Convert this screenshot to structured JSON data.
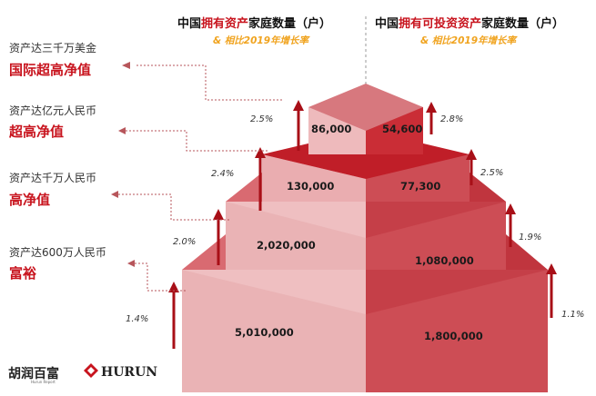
{
  "header": {
    "left": {
      "prefix": "中国",
      "highlight": "拥有资产",
      "suffix": "家庭数量（户）"
    },
    "right": {
      "prefix": "中国",
      "highlight": "拥有可投资资产",
      "suffix": "家庭数量（户）"
    },
    "subtitle": "& 相比2019年增长率"
  },
  "tiers": [
    {
      "criterion": "资产达三千万美金",
      "label": "国际超高净值"
    },
    {
      "criterion": "资产达亿元人民币",
      "label": "超高净值"
    },
    {
      "criterion": "资产达千万人民币",
      "label": "高净值"
    },
    {
      "criterion": "资产达600万人民币",
      "label": "富裕"
    }
  ],
  "chart_data": {
    "type": "table",
    "columns": [
      "拥有资产家庭数量（户）",
      "拥有可投资资产家庭数量（户）"
    ],
    "rows": [
      {
        "tier": "国际超高净值",
        "assets": "86,000",
        "assets_growth": "2.5%",
        "investable": "54,600",
        "investable_growth": "2.8%"
      },
      {
        "tier": "超高净值",
        "assets": "130,000",
        "assets_growth": "2.4%",
        "investable": "77,300",
        "investable_growth": "2.5%"
      },
      {
        "tier": "高净值",
        "assets": "2,020,000",
        "assets_growth": "2.0%",
        "investable": "1,080,000",
        "investable_growth": "1.9%"
      },
      {
        "tier": "富裕",
        "assets": "5,010,000",
        "assets_growth": "1.4%",
        "investable": "1,800,000",
        "investable_growth": "1.1%"
      }
    ]
  },
  "logos": {
    "cn": "胡润百富",
    "cn_sub": "Hurun Report",
    "en": "HURUN"
  },
  "colors": {
    "accent_red": "#c8141e",
    "subtitle_orange": "#f0a31e",
    "arrow_red": "#a80f17"
  }
}
